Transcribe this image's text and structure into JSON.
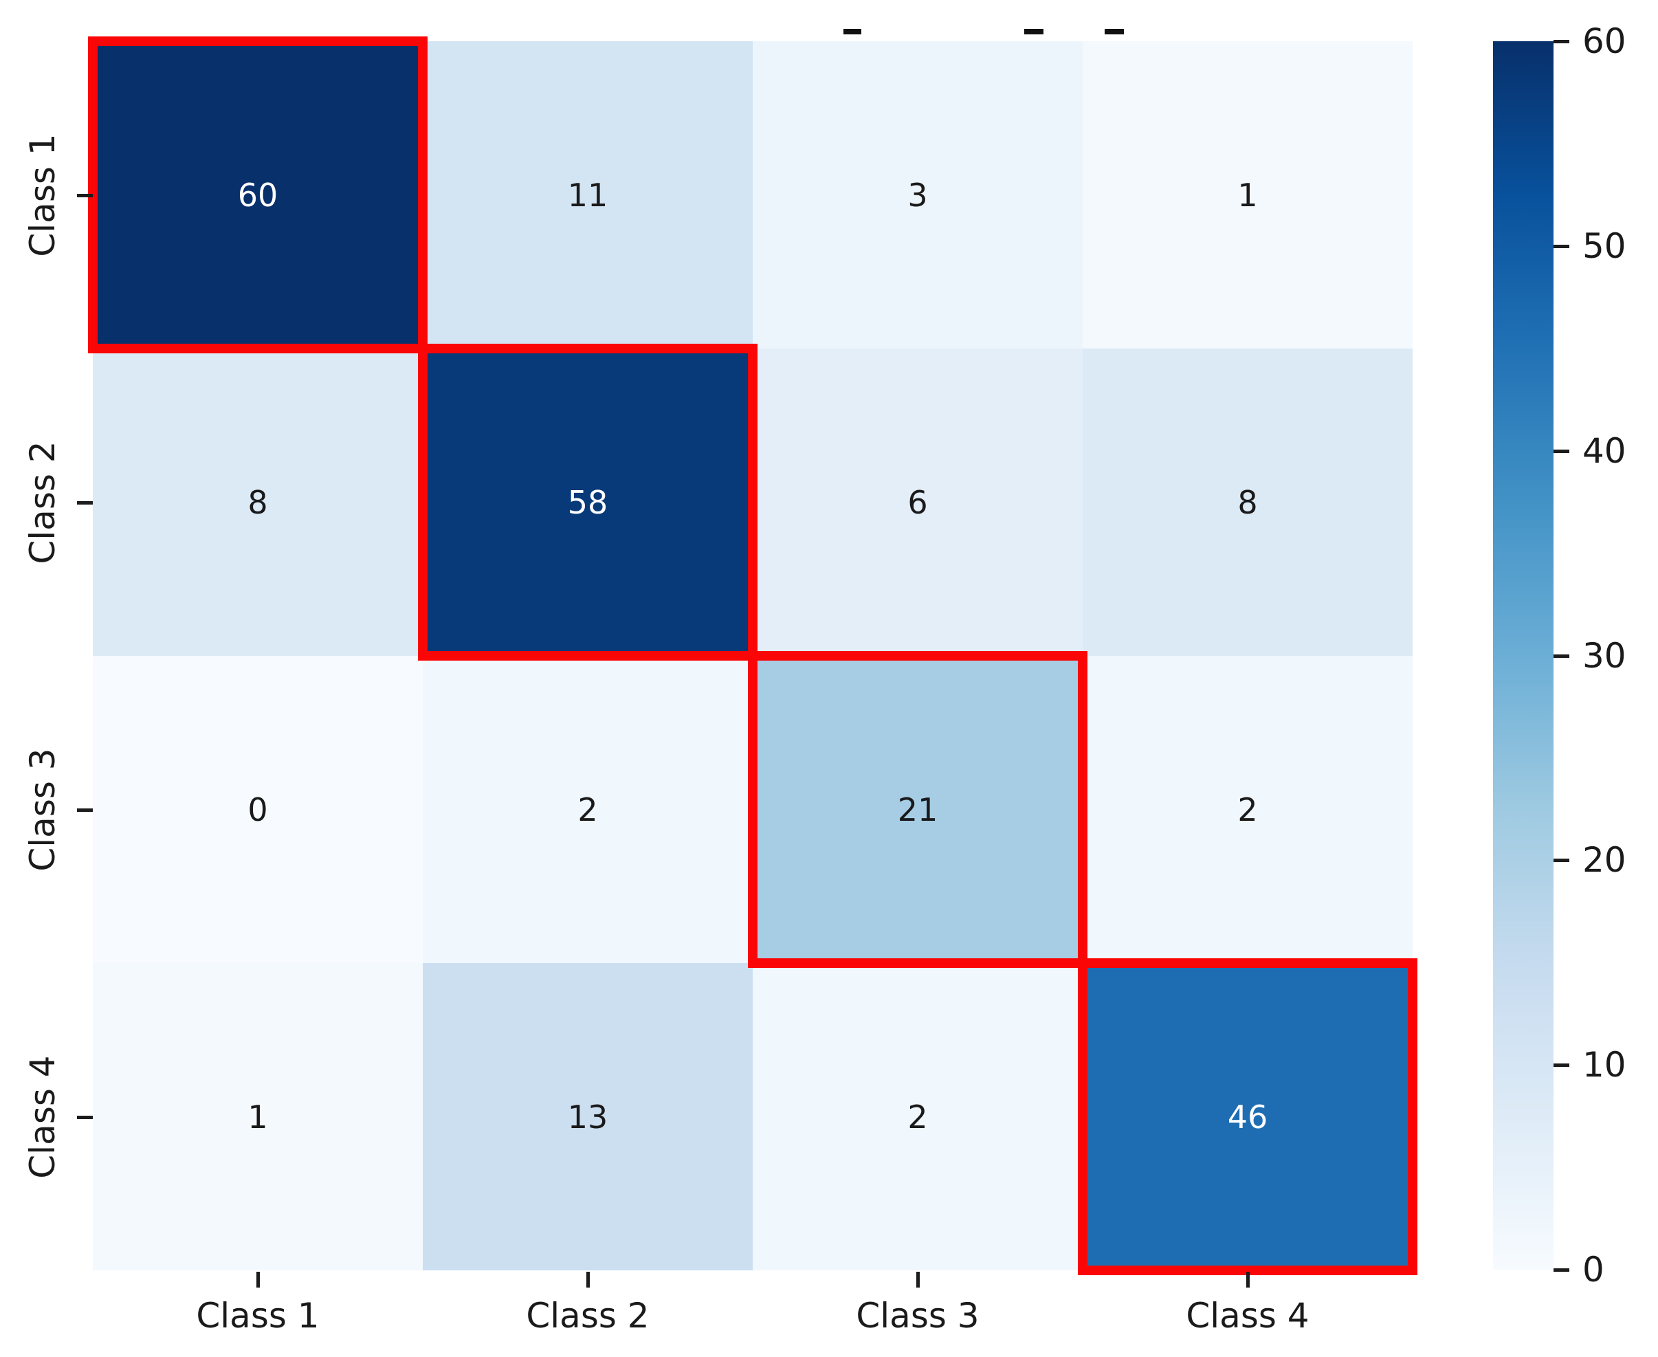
{
  "chart_data": {
    "type": "heatmap",
    "title": "",
    "x_categories": [
      "Class 1",
      "Class 2",
      "Class 3",
      "Class 4"
    ],
    "y_categories": [
      "Class 1",
      "Class 2",
      "Class 3",
      "Class 4"
    ],
    "matrix": [
      [
        60,
        11,
        3,
        1
      ],
      [
        8,
        58,
        6,
        8
      ],
      [
        0,
        2,
        21,
        2
      ],
      [
        1,
        13,
        2,
        46
      ]
    ],
    "vmin": 0,
    "vmax": 60,
    "colormap": "Blues",
    "annotations_shown": true,
    "diagonal_highlighted": true,
    "legend_position": "right",
    "colorbar": {
      "ticks": [
        60,
        50,
        40,
        30,
        20,
        10,
        0
      ],
      "min_label": "0",
      "max_label": "60"
    },
    "colors": {
      "colormap_stops_light_to_dark": [
        "#f7fbff",
        "#deebf7",
        "#c6dbef",
        "#9ecae1",
        "#6baed6",
        "#4292c6",
        "#2171b5",
        "#08519c",
        "#08306b"
      ],
      "highlight_border": "#fa0606",
      "annotation_dark": "#1a1a1a",
      "annotation_light": "#ffffff",
      "tick_color": "#1c1c1c",
      "background": "#ffffff"
    }
  }
}
